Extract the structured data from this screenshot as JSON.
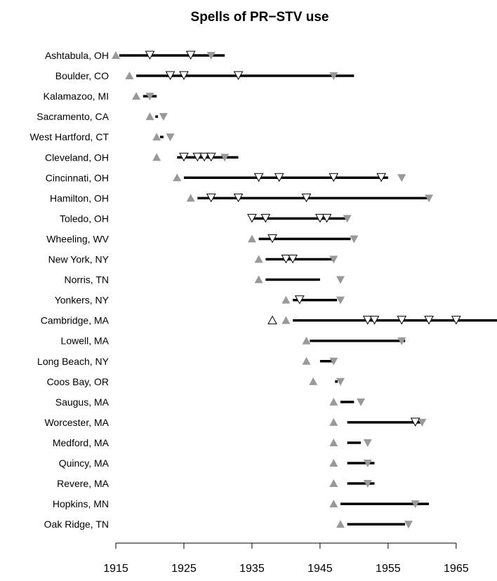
{
  "chart_data": {
    "type": "timeline",
    "title": "Spells of PR−STV use",
    "xlabel": "",
    "ylabel": "",
    "xlim": [
      1915,
      1971
    ],
    "x_ticks": [
      1915,
      1925,
      1935,
      1945,
      1955,
      1965
    ],
    "x_tick_labels": [
      "1915",
      "1925",
      "1935",
      "1945",
      "1955",
      "1965"
    ],
    "grid": false,
    "colors": {
      "adoption_marker": "#999999",
      "repeal_marker": "#999999",
      "election_marker": "#ffffff",
      "spell_line": "#000000"
    },
    "legend": "none",
    "cities": [
      {
        "name": "Ashtabula, OH",
        "spell": [
          1915.5,
          1931
        ],
        "adopt_filled": [
          1915
        ],
        "adopt_open": [],
        "repeal": [
          1929
        ],
        "elections": [
          1920,
          1926
        ]
      },
      {
        "name": "Boulder, CO",
        "spell": [
          1918,
          1950
        ],
        "adopt_filled": [
          1917
        ],
        "adopt_open": [],
        "repeal": [
          1947
        ],
        "elections": [
          1923,
          1925,
          1933
        ]
      },
      {
        "name": "Kalamazoo, MI",
        "spell": [
          1919,
          1921
        ],
        "adopt_filled": [
          1918
        ],
        "adopt_open": [],
        "repeal": [
          1920
        ],
        "elections": []
      },
      {
        "name": "Sacramento, CA",
        "spell": [
          1920.8,
          1921.2
        ],
        "adopt_filled": [
          1920
        ],
        "adopt_open": [],
        "repeal": [
          1922
        ],
        "elections": []
      },
      {
        "name": "West Hartford, CT",
        "spell": [
          1921.5,
          1922
        ],
        "adopt_filled": [
          1921
        ],
        "adopt_open": [],
        "repeal": [
          1923
        ],
        "elections": []
      },
      {
        "name": "Cleveland, OH",
        "spell": [
          1924,
          1933
        ],
        "adopt_filled": [
          1921
        ],
        "adopt_open": [],
        "repeal": [
          1931
        ],
        "elections": [
          1925,
          1927,
          1928,
          1929
        ]
      },
      {
        "name": "Cincinnati, OH",
        "spell": [
          1925,
          1955
        ],
        "adopt_filled": [
          1924
        ],
        "adopt_open": [],
        "repeal": [
          1957
        ],
        "elections": [
          1936,
          1939,
          1947,
          1954
        ]
      },
      {
        "name": "Hamilton, OH",
        "spell": [
          1927,
          1961
        ],
        "adopt_filled": [
          1926
        ],
        "adopt_open": [],
        "repeal": [
          1961
        ],
        "elections": [
          1929,
          1933,
          1943
        ]
      },
      {
        "name": "Toledo, OH",
        "spell": [
          1935,
          1949
        ],
        "adopt_filled": [],
        "adopt_open": [],
        "repeal": [
          1949
        ],
        "elections": [
          1935,
          1937,
          1945,
          1946
        ]
      },
      {
        "name": "Wheeling, WV",
        "spell": [
          1936,
          1949.5
        ],
        "adopt_filled": [
          1935
        ],
        "adopt_open": [],
        "repeal": [
          1950
        ],
        "elections": [
          1938
        ]
      },
      {
        "name": "New York, NY",
        "spell": [
          1937,
          1947
        ],
        "adopt_filled": [
          1936
        ],
        "adopt_open": [],
        "repeal": [
          1947
        ],
        "elections": [
          1940,
          1941
        ]
      },
      {
        "name": "Norris, TN",
        "spell": [
          1937,
          1945
        ],
        "adopt_filled": [
          1936
        ],
        "adopt_open": [],
        "repeal": [
          1948
        ],
        "elections": []
      },
      {
        "name": "Yonkers, NY",
        "spell": [
          1941,
          1947.5
        ],
        "adopt_filled": [
          1940
        ],
        "adopt_open": [],
        "repeal": [
          1948
        ],
        "elections": [
          1942
        ]
      },
      {
        "name": "Cambridge, MA",
        "spell": [
          1941,
          1971
        ],
        "adopt_filled": [
          1940
        ],
        "adopt_open": [
          1938
        ],
        "repeal": [],
        "elections": [
          1952,
          1953,
          1957,
          1961,
          1965
        ]
      },
      {
        "name": "Lowell, MA",
        "spell": [
          1943.5,
          1957.5
        ],
        "adopt_filled": [
          1943
        ],
        "adopt_open": [],
        "repeal": [
          1957
        ],
        "elections": []
      },
      {
        "name": "Long Beach, NY",
        "spell": [
          1945,
          1947
        ],
        "adopt_filled": [
          1943
        ],
        "adopt_open": [],
        "repeal": [
          1947
        ],
        "elections": []
      },
      {
        "name": "Coos Bay, OR",
        "spell": [
          1947.2,
          1947.6
        ],
        "adopt_filled": [
          1944
        ],
        "adopt_open": [],
        "repeal": [
          1948
        ],
        "elections": []
      },
      {
        "name": "Saugus, MA",
        "spell": [
          1948,
          1950
        ],
        "adopt_filled": [
          1947
        ],
        "adopt_open": [],
        "repeal": [
          1951
        ],
        "elections": []
      },
      {
        "name": "Worcester, MA",
        "spell": [
          1949,
          1960
        ],
        "adopt_filled": [
          1947
        ],
        "adopt_open": [],
        "repeal": [
          1960
        ],
        "elections": [
          1959
        ]
      },
      {
        "name": "Medford, MA",
        "spell": [
          1949,
          1951
        ],
        "adopt_filled": [
          1947
        ],
        "adopt_open": [],
        "repeal": [
          1952
        ],
        "elections": []
      },
      {
        "name": "Quincy, MA",
        "spell": [
          1949,
          1953
        ],
        "adopt_filled": [
          1947
        ],
        "adopt_open": [],
        "repeal": [
          1952
        ],
        "elections": []
      },
      {
        "name": "Revere, MA",
        "spell": [
          1949,
          1953
        ],
        "adopt_filled": [
          1947
        ],
        "adopt_open": [],
        "repeal": [
          1952
        ],
        "elections": []
      },
      {
        "name": "Hopkins, MN",
        "spell": [
          1948,
          1961
        ],
        "adopt_filled": [
          1947
        ],
        "adopt_open": [],
        "repeal": [
          1959
        ],
        "elections": []
      },
      {
        "name": "Oak Ridge, TN",
        "spell": [
          1949,
          1957.5
        ],
        "adopt_filled": [
          1948
        ],
        "adopt_open": [],
        "repeal": [
          1958
        ],
        "elections": []
      }
    ]
  }
}
